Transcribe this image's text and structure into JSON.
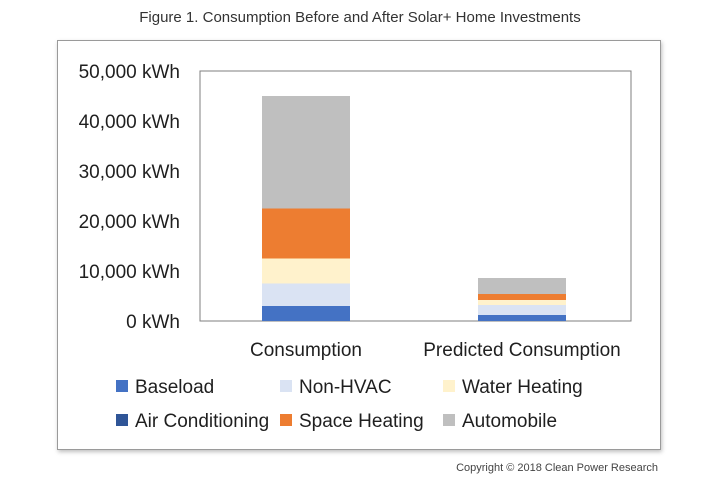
{
  "figure_title": "Figure 1. Consumption Before and After Solar+ Home Investments",
  "copyright": "Copyright © 2018 Clean Power Research",
  "chart_data": {
    "type": "bar",
    "stacked": true,
    "title": "Figure 1. Consumption Before and After Solar+ Home Investments",
    "xlabel": "",
    "ylabel": "",
    "unit": "kWh",
    "ylim": [
      0,
      50000
    ],
    "yticks": [
      0,
      10000,
      20000,
      30000,
      40000,
      50000
    ],
    "ytick_labels": [
      "0 kWh",
      "10,000 kWh",
      "20,000 kWh",
      "30,000 kWh",
      "40,000 kWh",
      "50,000 kWh"
    ],
    "categories": [
      "Consumption",
      "Predicted Consumption"
    ],
    "series": [
      {
        "name": "Baseload",
        "color": "#4472C4",
        "values": [
          3000,
          1200
        ]
      },
      {
        "name": "Air Conditioning",
        "color": "#2F5597",
        "values": [
          0,
          0
        ]
      },
      {
        "name": "Non-HVAC",
        "color": "#DAE3F3",
        "values": [
          4500,
          2000
        ]
      },
      {
        "name": "Space Heating",
        "color": "#ED7D31",
        "values": [
          10000,
          1200
        ]
      },
      {
        "name": "Water Heating",
        "color": "#FFF2CC",
        "values": [
          5000,
          1000
        ]
      },
      {
        "name": "Automobile",
        "color": "#BFBFBF",
        "values": [
          22500,
          3200
        ]
      }
    ],
    "stack_order": [
      "Baseload",
      "Air Conditioning",
      "Non-HVAC",
      "Water Heating",
      "Space Heating",
      "Automobile"
    ],
    "legend": {
      "position": "bottom",
      "rows": [
        [
          "Baseload",
          "Non-HVAC",
          "Water Heating"
        ],
        [
          "Air Conditioning",
          "Space Heating",
          "Automobile"
        ]
      ]
    },
    "grid": false
  }
}
